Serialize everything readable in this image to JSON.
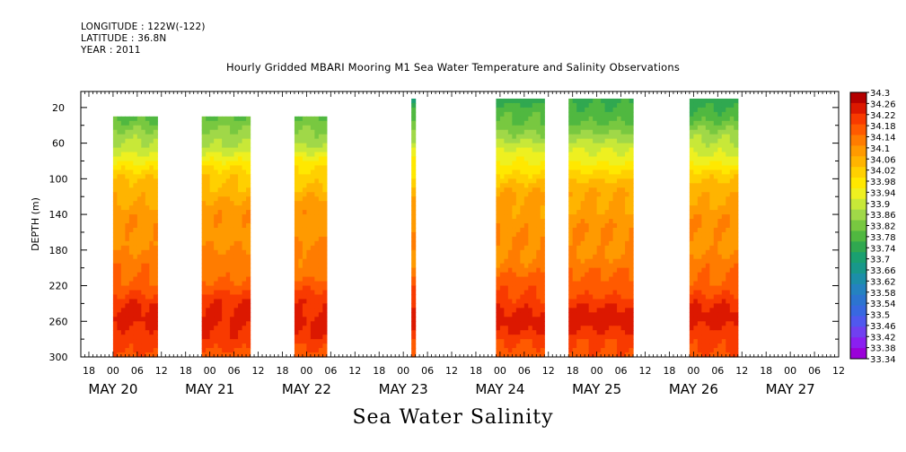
{
  "header": {
    "longitude": "LONGITUDE : 122W(-122)",
    "latitude": "LATITUDE : 36.8N",
    "year": "YEAR : 2011"
  },
  "title": "Hourly Gridded MBARI Mooring M1 Sea Water Temperature and Salinity Observations",
  "bottom_title": "Sea Water Salinity",
  "chart_data": {
    "type": "heatmap",
    "title": "Hourly Gridded MBARI Mooring M1 Sea Water Temperature and Salinity Observations",
    "xlabel": "",
    "ylabel": "DEPTH (m)",
    "x_hour_ticks": [
      "18",
      "00",
      "06",
      "12",
      "18",
      "00",
      "06",
      "12",
      "18",
      "00",
      "06",
      "12",
      "18",
      "00",
      "06",
      "12",
      "18",
      "00",
      "06",
      "12",
      "18",
      "00",
      "06",
      "12",
      "18",
      "00",
      "06",
      "12",
      "18",
      "00",
      "06",
      "12"
    ],
    "x_day_labels": [
      "MAY 20",
      "MAY 21",
      "MAY 22",
      "MAY 23",
      "MAY 24",
      "MAY 25",
      "MAY 26",
      "MAY 27"
    ],
    "xlim_hours_from_may20_00": [
      -8,
      180
    ],
    "ylim_depth_m": [
      300,
      2
    ],
    "y_ticks": [
      20,
      60,
      100,
      140,
      180,
      220,
      260,
      300
    ],
    "color_levels": [
      33.34,
      33.38,
      33.42,
      33.46,
      33.5,
      33.54,
      33.58,
      33.62,
      33.66,
      33.7,
      33.74,
      33.78,
      33.82,
      33.86,
      33.9,
      33.94,
      33.98,
      34.02,
      34.06,
      34.1,
      34.14,
      34.18,
      34.22,
      34.26,
      34.3
    ],
    "level_labels": [
      "34.3",
      "34.26",
      "34.22",
      "34.18",
      "34.14",
      "34.1",
      "34.06",
      "34.02",
      "33.98",
      "33.94",
      "33.9",
      "33.86",
      "33.82",
      "33.78",
      "33.74",
      "33.7",
      "33.66",
      "33.62",
      "33.58",
      "33.54",
      "33.5",
      "33.46",
      "33.42",
      "33.38",
      "33.34"
    ],
    "colors": [
      "#9a00d8",
      "#8a1ff0",
      "#7040f0",
      "#5058ee",
      "#3868e0",
      "#2c74d0",
      "#2482c0",
      "#1c8ea8",
      "#18988a",
      "#1aa070",
      "#30a850",
      "#50b840",
      "#78c840",
      "#a0d848",
      "#c8e838",
      "#eef020",
      "#ffe800",
      "#ffd000",
      "#ffb400",
      "#ff9a00",
      "#ff7c00",
      "#ff5a00",
      "#f83a00",
      "#dc1800",
      "#b40000"
    ],
    "profile_depths_m": [
      20,
      40,
      60,
      80,
      100,
      120,
      140,
      160,
      180,
      200,
      220,
      240,
      260,
      280,
      300
    ],
    "profile_salinity": [
      33.78,
      33.84,
      33.9,
      33.98,
      34.05,
      34.1,
      34.12,
      34.13,
      34.14,
      34.16,
      34.2,
      34.25,
      34.28,
      34.24,
      34.2
    ],
    "observation_segments": [
      {
        "start_hour": 0,
        "end_hour": 11,
        "top_depth_m": 30
      },
      {
        "start_hour": 22,
        "end_hour": 34,
        "top_depth_m": 30
      },
      {
        "start_hour": 45,
        "end_hour": 53,
        "top_depth_m": 30
      },
      {
        "start_hour": 74,
        "end_hour": 75,
        "top_depth_m": 10
      },
      {
        "start_hour": 95,
        "end_hour": 107,
        "top_depth_m": 10
      },
      {
        "start_hour": 113,
        "end_hour": 129,
        "top_depth_m": 10
      },
      {
        "start_hour": 143,
        "end_hour": 155,
        "top_depth_m": 10
      }
    ]
  }
}
